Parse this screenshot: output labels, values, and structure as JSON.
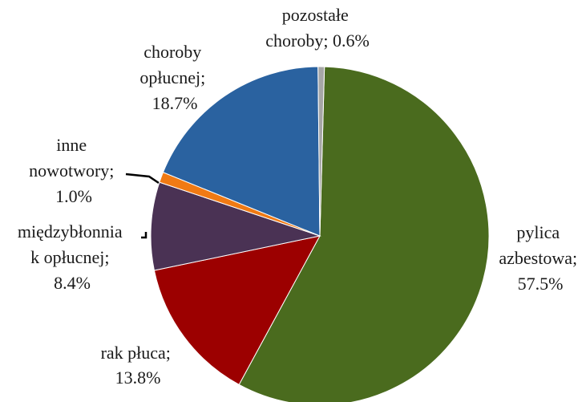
{
  "chart_data": {
    "type": "pie",
    "title": "",
    "slices": [
      {
        "label_lines": [
          "pylica",
          "azbestowa;",
          "57.5%"
        ],
        "name": "pylica azbestowa",
        "value": 57.5,
        "color": "#4a6b1e"
      },
      {
        "label_lines": [
          "rak płuca;",
          "13.8%"
        ],
        "name": "rak płuca",
        "value": 13.8,
        "color": "#9c0000"
      },
      {
        "label_lines": [
          "międzybłonnia",
          "k opłucnej;",
          "8.4%"
        ],
        "name": "międzybłoniak opłucnej",
        "value": 8.4,
        "color": "#4a3254"
      },
      {
        "label_lines": [
          "inne",
          "nowotwory;",
          "1.0%"
        ],
        "name": "inne nowotwory",
        "value": 1.0,
        "color": "#f07a14"
      },
      {
        "label_lines": [
          "choroby",
          "opłucnej;",
          "18.7%"
        ],
        "name": "choroby opłucnej",
        "value": 18.7,
        "color": "#2a62a0"
      },
      {
        "label_lines": [
          "pozostałe",
          "choroby; 0.6%"
        ],
        "name": "pozostałe choroby",
        "value": 0.6,
        "color": "#a6a6a6"
      }
    ]
  }
}
